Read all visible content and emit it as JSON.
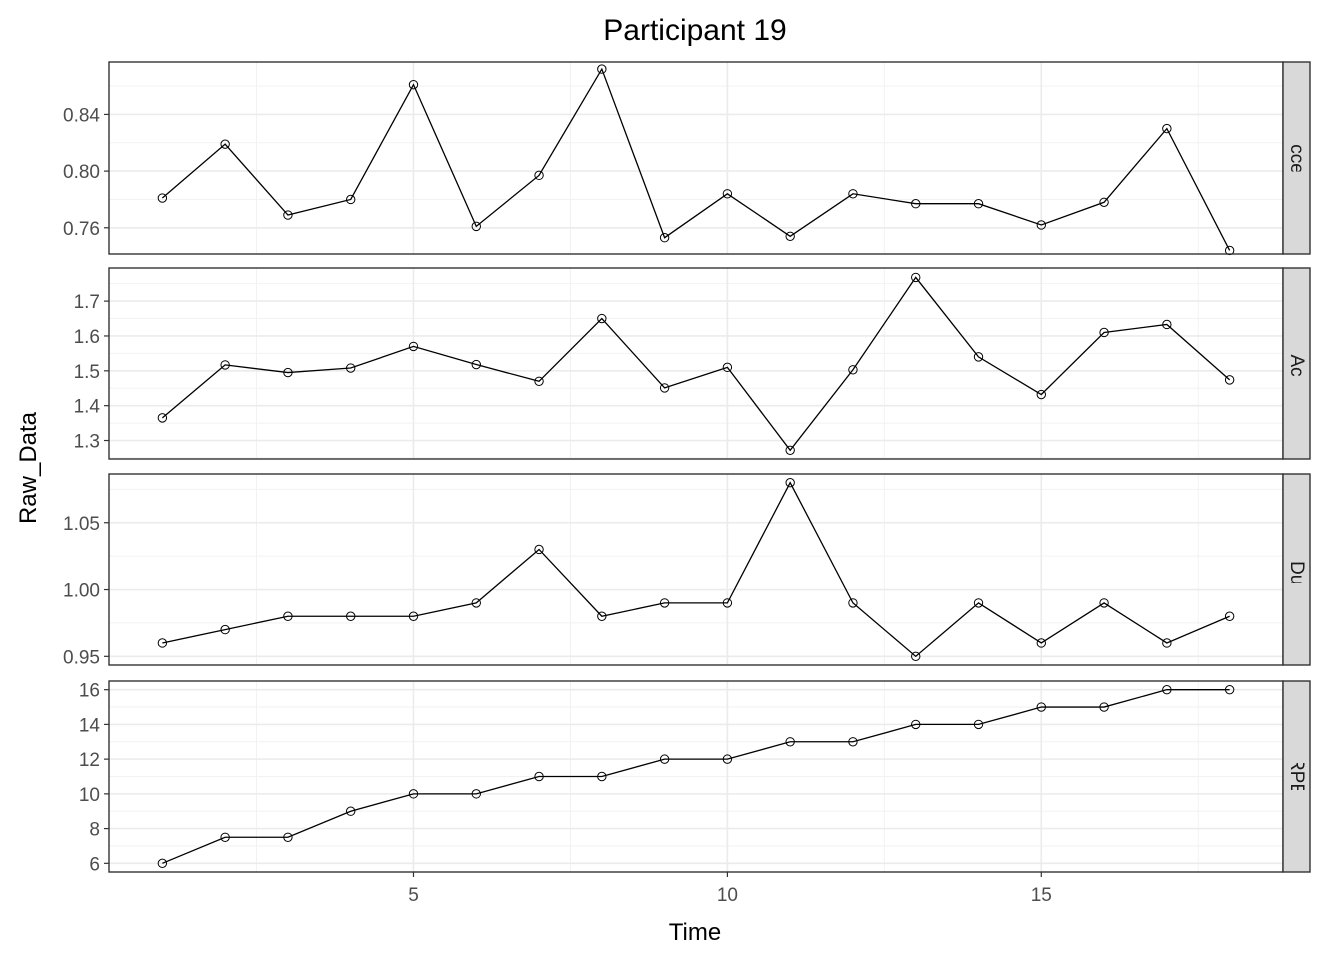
{
  "chart_data": {
    "type": "line",
    "title": "Participant 19",
    "xlabel": "Time",
    "ylabel": "Raw_Data",
    "x": [
      1,
      2,
      3,
      4,
      5,
      6,
      7,
      8,
      9,
      10,
      11,
      12,
      13,
      14,
      15,
      16,
      17,
      18
    ],
    "x_ticks": [
      "5",
      "10",
      "15"
    ],
    "xlim": [
      0.15,
      18.85
    ],
    "grid": true,
    "facets": [
      {
        "name": "Mean Acceleration",
        "values": [
          0.781,
          0.819,
          0.769,
          0.78,
          0.861,
          0.761,
          0.797,
          0.872,
          0.753,
          0.784,
          0.754,
          0.784,
          0.777,
          0.777,
          0.762,
          0.778,
          0.83,
          0.744
        ],
        "ylim": [
          0.7415,
          0.877
        ],
        "y_ticks": [
          "0.76",
          "0.80",
          "0.84"
        ]
      },
      {
        "name": "Maximum Acceleration",
        "values": [
          1.365,
          1.517,
          1.495,
          1.508,
          1.57,
          1.518,
          1.47,
          1.65,
          1.451,
          1.51,
          1.272,
          1.503,
          1.768,
          1.54,
          1.432,
          1.61,
          1.633,
          1.474
        ],
        "ylim": [
          1.247,
          1.795
        ],
        "y_ticks": [
          "1.3",
          "1.4",
          "1.5",
          "1.6",
          "1.7"
        ]
      },
      {
        "name": "Stride Duration",
        "values": [
          0.96,
          0.97,
          0.98,
          0.98,
          0.98,
          0.99,
          1.03,
          0.98,
          0.99,
          0.99,
          1.08,
          0.99,
          0.95,
          0.99,
          0.96,
          0.99,
          0.96,
          0.98
        ],
        "ylim": [
          0.9435,
          1.0865
        ],
        "y_ticks": [
          "0.95",
          "1.00",
          "1.05"
        ]
      },
      {
        "name": "RPE",
        "values": [
          6,
          7.5,
          7.5,
          9,
          10,
          10,
          11,
          11,
          12,
          12,
          13,
          13,
          14,
          14,
          15,
          15,
          16,
          16
        ],
        "ylim": [
          5.5,
          16.5
        ],
        "y_ticks": [
          "6",
          "8",
          "10",
          "12",
          "14",
          "16"
        ]
      }
    ]
  }
}
